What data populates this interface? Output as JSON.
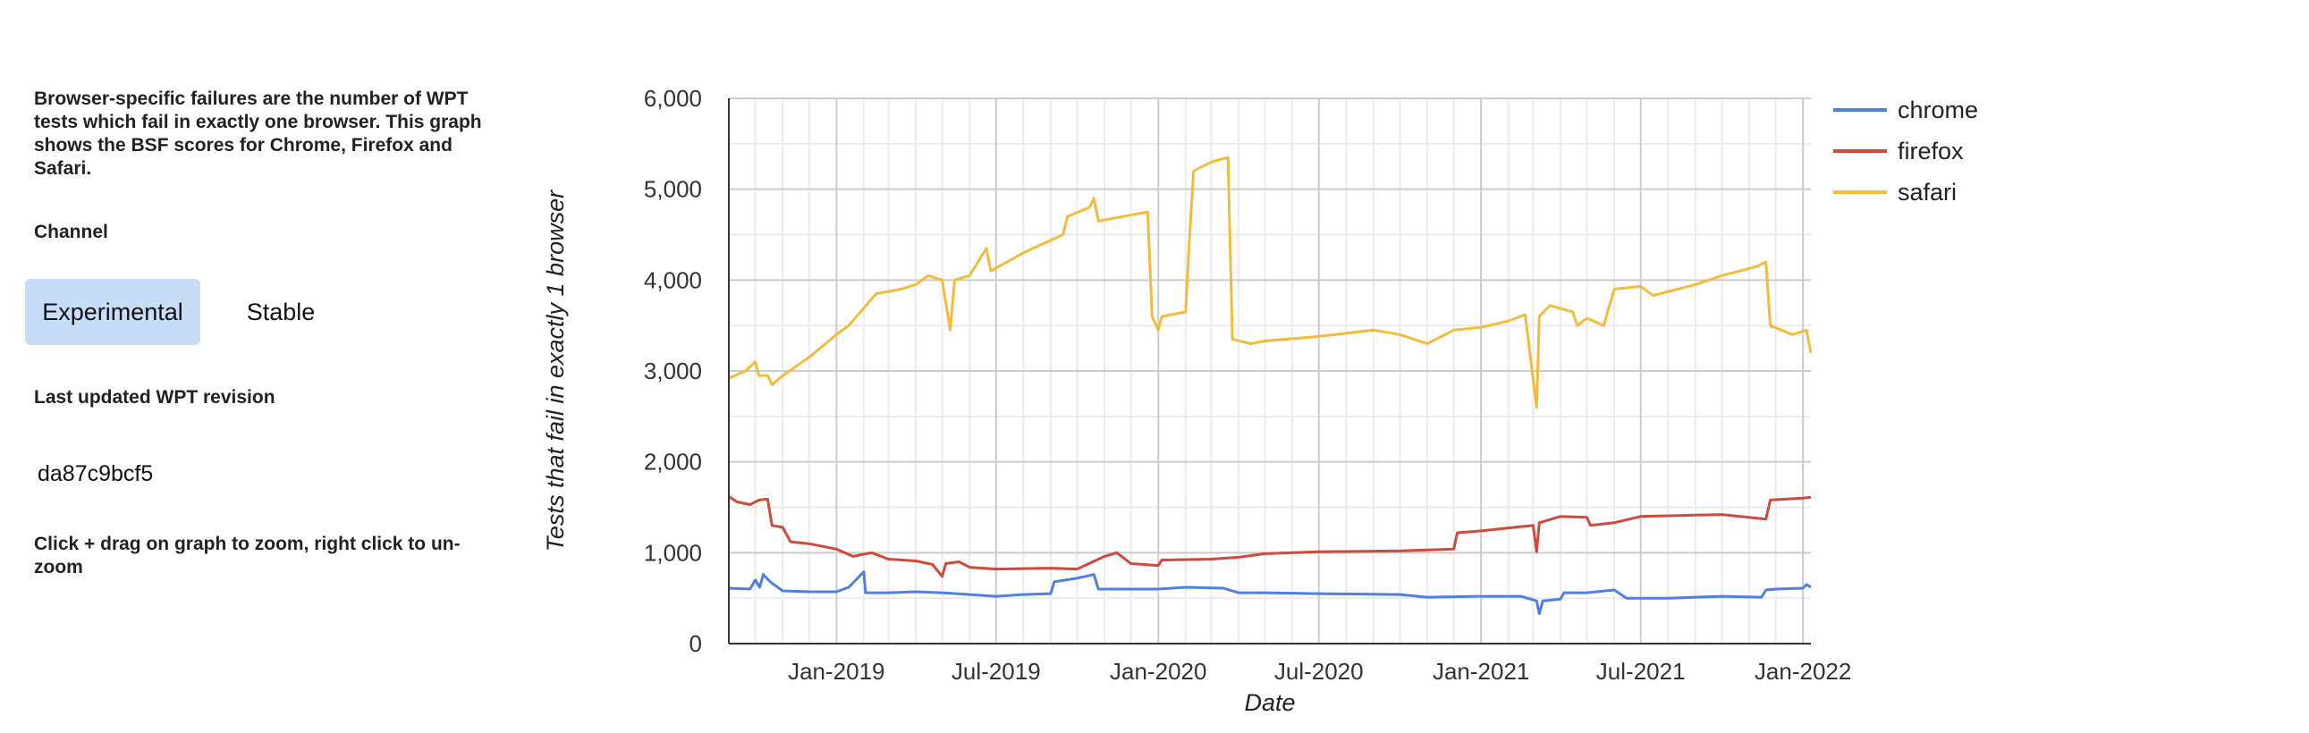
{
  "sidebar": {
    "description": "Browser-specific failures are the number of WPT tests which fail in exactly one browser. This graph shows the BSF scores for Chrome, Firefox and Safari.",
    "channel_label": "Channel",
    "channels": [
      {
        "label": "Experimental",
        "selected": true
      },
      {
        "label": "Stable",
        "selected": false
      }
    ],
    "last_updated_label": "Last updated WPT revision",
    "revision": "da87c9bcf5",
    "zoom_hint": "Click + drag on graph to zoom, right click to un-zoom"
  },
  "chart_data": {
    "type": "line",
    "xlabel": "Date",
    "ylabel": "Tests that fail in exactly 1 browser",
    "ylim": [
      0,
      6000
    ],
    "yticks": [
      0,
      1000,
      2000,
      3000,
      4000,
      5000,
      6000
    ],
    "ytick_labels": [
      "0",
      "1,000",
      "2,000",
      "3,000",
      "4,000",
      "5,000",
      "6,000"
    ],
    "xlim": [
      "2018-09-01",
      "2022-01-10"
    ],
    "xticks": [
      "2019-01-01",
      "2019-07-01",
      "2020-01-01",
      "2020-07-01",
      "2021-01-01",
      "2021-07-01",
      "2022-01-01"
    ],
    "xtick_labels": [
      "Jan-2019",
      "Jul-2019",
      "Jan-2020",
      "Jul-2020",
      "Jan-2021",
      "Jul-2021",
      "Jan-2022"
    ],
    "grid": true,
    "legend_position": "top-right",
    "colors": {
      "chrome": "#4f7fe0",
      "firefox": "#d04a3a",
      "safari": "#f3bb3b"
    },
    "series": [
      {
        "name": "chrome",
        "points": [
          [
            "2018-09-01",
            610
          ],
          [
            "2018-09-25",
            600
          ],
          [
            "2018-10-01",
            700
          ],
          [
            "2018-10-06",
            620
          ],
          [
            "2018-10-10",
            760
          ],
          [
            "2018-10-18",
            680
          ],
          [
            "2018-11-01",
            580
          ],
          [
            "2018-12-01",
            570
          ],
          [
            "2019-01-01",
            570
          ],
          [
            "2019-01-15",
            620
          ],
          [
            "2019-02-01",
            790
          ],
          [
            "2019-02-03",
            560
          ],
          [
            "2019-03-01",
            560
          ],
          [
            "2019-04-01",
            570
          ],
          [
            "2019-05-01",
            560
          ],
          [
            "2019-06-01",
            540
          ],
          [
            "2019-07-01",
            520
          ],
          [
            "2019-08-01",
            540
          ],
          [
            "2019-09-01",
            550
          ],
          [
            "2019-09-05",
            680
          ],
          [
            "2019-10-01",
            720
          ],
          [
            "2019-10-20",
            760
          ],
          [
            "2019-10-25",
            600
          ],
          [
            "2019-12-01",
            600
          ],
          [
            "2020-01-01",
            600
          ],
          [
            "2020-02-01",
            620
          ],
          [
            "2020-03-15",
            610
          ],
          [
            "2020-04-01",
            560
          ],
          [
            "2020-05-01",
            560
          ],
          [
            "2020-07-01",
            550
          ],
          [
            "2020-10-01",
            540
          ],
          [
            "2020-11-01",
            510
          ],
          [
            "2021-01-01",
            520
          ],
          [
            "2021-02-15",
            520
          ],
          [
            "2021-03-05",
            470
          ],
          [
            "2021-03-08",
            330
          ],
          [
            "2021-03-12",
            470
          ],
          [
            "2021-04-01",
            490
          ],
          [
            "2021-04-05",
            560
          ],
          [
            "2021-05-01",
            560
          ],
          [
            "2021-06-01",
            590
          ],
          [
            "2021-06-15",
            500
          ],
          [
            "2021-08-01",
            500
          ],
          [
            "2021-10-01",
            520
          ],
          [
            "2021-11-15",
            510
          ],
          [
            "2021-11-20",
            590
          ],
          [
            "2021-12-01",
            600
          ],
          [
            "2022-01-01",
            610
          ],
          [
            "2022-01-05",
            650
          ],
          [
            "2022-01-10",
            620
          ]
        ]
      },
      {
        "name": "firefox",
        "points": [
          [
            "2018-09-01",
            1620
          ],
          [
            "2018-09-10",
            1560
          ],
          [
            "2018-09-25",
            1530
          ],
          [
            "2018-10-05",
            1580
          ],
          [
            "2018-10-15",
            1590
          ],
          [
            "2018-10-20",
            1300
          ],
          [
            "2018-11-01",
            1280
          ],
          [
            "2018-11-10",
            1120
          ],
          [
            "2018-12-01",
            1100
          ],
          [
            "2019-01-01",
            1040
          ],
          [
            "2019-01-20",
            960
          ],
          [
            "2019-02-10",
            1000
          ],
          [
            "2019-03-01",
            930
          ],
          [
            "2019-04-01",
            910
          ],
          [
            "2019-04-20",
            870
          ],
          [
            "2019-05-01",
            740
          ],
          [
            "2019-05-05",
            880
          ],
          [
            "2019-05-20",
            900
          ],
          [
            "2019-06-01",
            840
          ],
          [
            "2019-07-01",
            820
          ],
          [
            "2019-09-01",
            830
          ],
          [
            "2019-10-01",
            820
          ],
          [
            "2019-11-01",
            960
          ],
          [
            "2019-11-15",
            1000
          ],
          [
            "2019-12-01",
            880
          ],
          [
            "2020-01-01",
            860
          ],
          [
            "2020-01-05",
            920
          ],
          [
            "2020-03-01",
            930
          ],
          [
            "2020-04-01",
            950
          ],
          [
            "2020-05-01",
            990
          ],
          [
            "2020-07-01",
            1010
          ],
          [
            "2020-10-01",
            1020
          ],
          [
            "2020-12-01",
            1040
          ],
          [
            "2020-12-05",
            1220
          ],
          [
            "2021-01-01",
            1240
          ],
          [
            "2021-03-01",
            1300
          ],
          [
            "2021-03-05",
            1010
          ],
          [
            "2021-03-08",
            1330
          ],
          [
            "2021-04-01",
            1400
          ],
          [
            "2021-05-01",
            1390
          ],
          [
            "2021-05-05",
            1300
          ],
          [
            "2021-06-01",
            1330
          ],
          [
            "2021-07-01",
            1400
          ],
          [
            "2021-10-01",
            1420
          ],
          [
            "2021-11-20",
            1370
          ],
          [
            "2021-11-25",
            1580
          ],
          [
            "2022-01-01",
            1600
          ],
          [
            "2022-01-10",
            1610
          ]
        ]
      },
      {
        "name": "safari",
        "points": [
          [
            "2018-09-01",
            2920
          ],
          [
            "2018-09-20",
            3000
          ],
          [
            "2018-10-01",
            3100
          ],
          [
            "2018-10-05",
            2950
          ],
          [
            "2018-10-15",
            2950
          ],
          [
            "2018-10-20",
            2850
          ],
          [
            "2018-11-01",
            2950
          ],
          [
            "2018-12-01",
            3150
          ],
          [
            "2019-01-01",
            3400
          ],
          [
            "2019-01-15",
            3500
          ],
          [
            "2019-02-15",
            3850
          ],
          [
            "2019-03-15",
            3900
          ],
          [
            "2019-04-01",
            3950
          ],
          [
            "2019-04-15",
            4050
          ],
          [
            "2019-05-01",
            4000
          ],
          [
            "2019-05-10",
            3450
          ],
          [
            "2019-05-15",
            4000
          ],
          [
            "2019-06-01",
            4050
          ],
          [
            "2019-06-20",
            4350
          ],
          [
            "2019-06-25",
            4100
          ],
          [
            "2019-08-01",
            4300
          ],
          [
            "2019-09-15",
            4500
          ],
          [
            "2019-09-20",
            4700
          ],
          [
            "2019-10-15",
            4800
          ],
          [
            "2019-10-20",
            4900
          ],
          [
            "2019-10-25",
            4650
          ],
          [
            "2019-12-20",
            4750
          ],
          [
            "2019-12-25",
            3600
          ],
          [
            "2020-01-01",
            3450
          ],
          [
            "2020-01-05",
            3600
          ],
          [
            "2020-02-01",
            3650
          ],
          [
            "2020-02-05",
            4400
          ],
          [
            "2020-02-10",
            5200
          ],
          [
            "2020-03-01",
            5300
          ],
          [
            "2020-03-20",
            5350
          ],
          [
            "2020-03-25",
            3350
          ],
          [
            "2020-04-15",
            3300
          ],
          [
            "2020-05-01",
            3330
          ],
          [
            "2020-07-01",
            3380
          ],
          [
            "2020-09-01",
            3450
          ],
          [
            "2020-10-01",
            3400
          ],
          [
            "2020-11-01",
            3300
          ],
          [
            "2020-12-01",
            3450
          ],
          [
            "2021-01-01",
            3480
          ],
          [
            "2021-02-01",
            3550
          ],
          [
            "2021-02-20",
            3620
          ],
          [
            "2021-03-05",
            2600
          ],
          [
            "2021-03-08",
            3600
          ],
          [
            "2021-03-20",
            3720
          ],
          [
            "2021-04-15",
            3650
          ],
          [
            "2021-04-20",
            3500
          ],
          [
            "2021-05-01",
            3580
          ],
          [
            "2021-05-20",
            3500
          ],
          [
            "2021-06-01",
            3900
          ],
          [
            "2021-07-01",
            3930
          ],
          [
            "2021-07-15",
            3830
          ],
          [
            "2021-09-01",
            3950
          ],
          [
            "2021-10-01",
            4050
          ],
          [
            "2021-11-10",
            4150
          ],
          [
            "2021-11-20",
            4200
          ],
          [
            "2021-11-25",
            3500
          ],
          [
            "2021-12-20",
            3400
          ],
          [
            "2022-01-05",
            3450
          ],
          [
            "2022-01-10",
            3200
          ]
        ]
      }
    ]
  }
}
